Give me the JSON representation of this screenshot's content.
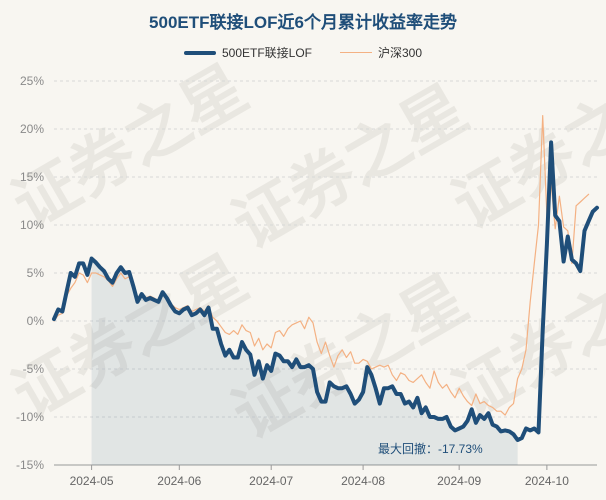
{
  "chart_data": {
    "type": "line",
    "title": "500ETF联接LOF近6个月累计收益率走势",
    "xlabel": "",
    "ylabel": "",
    "ylim": [
      -15,
      25
    ],
    "yticks": [
      "25%",
      "20%",
      "15%",
      "10%",
      "5%",
      "0%",
      "-5%",
      "-10%",
      "-15%"
    ],
    "ytick_values": [
      25,
      20,
      15,
      10,
      5,
      0,
      -5,
      -10,
      -15
    ],
    "xticks": [
      "2024-05",
      "2024-06",
      "2024-07",
      "2024-08",
      "2024-09",
      "2024-10"
    ],
    "grid": true,
    "legend": "top-center",
    "annotation": "最大回撤：-17.73%",
    "watermark": "证券之星",
    "series": [
      {
        "name": "500ETF联接LOF",
        "color": "#1f4e79",
        "values": [
          0.2,
          1.2,
          1.0,
          3.0,
          5.0,
          4.6,
          6.0,
          6.0,
          4.8,
          6.5,
          6.1,
          5.6,
          5.2,
          4.4,
          4.0,
          5.0,
          5.6,
          5.0,
          5.1,
          3.6,
          2.0,
          2.8,
          2.2,
          2.4,
          2.2,
          2.0,
          3.0,
          2.4,
          1.6,
          1.0,
          0.8,
          1.2,
          1.4,
          0.6,
          0.8,
          1.2,
          0.6,
          1.4,
          -0.8,
          -0.8,
          -2.4,
          -3.6,
          -3.0,
          -3.8,
          -3.8,
          -2.2,
          -3.0,
          -3.5,
          -5.6,
          -4.2,
          -6.0,
          -4.6,
          -5.2,
          -3.4,
          -3.6,
          -4.2,
          -4.2,
          -4.8,
          -4.0,
          -4.8,
          -4.8,
          -4.6,
          -5.0,
          -7.4,
          -8.4,
          -8.4,
          -6.4,
          -6.8,
          -7.0,
          -7.0,
          -6.8,
          -7.6,
          -8.6,
          -8.2,
          -7.4,
          -4.8,
          -5.6,
          -7.0,
          -8.6,
          -7.0,
          -7.0,
          -6.8,
          -7.6,
          -7.6,
          -8.6,
          -8.4,
          -9.0,
          -8.0,
          -9.6,
          -9.0,
          -10.0,
          -10.0,
          -10.2,
          -10.2,
          -10.0,
          -11.0,
          -11.4,
          -11.2,
          -11.0,
          -10.4,
          -9.2,
          -10.6,
          -9.8,
          -10.2,
          -9.6,
          -10.8,
          -11.0,
          -11.5,
          -11.4,
          -11.5,
          -11.8,
          -12.4,
          -12.2,
          -11.2,
          -11.4,
          -11.2,
          -11.6,
          -1.0,
          8.0,
          18.6,
          11.0,
          10.4,
          6.2,
          8.8,
          6.4,
          6.0,
          5.2,
          9.4,
          10.4,
          11.4,
          11.8
        ]
      },
      {
        "name": "沪深300",
        "color": "#f4b183",
        "values": [
          0.0,
          0.6,
          0.8,
          2.6,
          3.4,
          4.0,
          5.0,
          4.8,
          4.0,
          5.0,
          5.0,
          4.8,
          4.6,
          4.2,
          3.6,
          4.4,
          5.0,
          4.4,
          4.6,
          3.2,
          2.4,
          2.8,
          2.4,
          2.6,
          2.4,
          2.0,
          2.8,
          2.4,
          1.8,
          1.4,
          1.2,
          1.4,
          1.6,
          1.0,
          1.2,
          1.4,
          1.0,
          1.6,
          0.4,
          0.0,
          -0.6,
          -1.2,
          -1.4,
          -1.0,
          -1.4,
          -0.4,
          -1.0,
          -1.2,
          -2.6,
          -1.8,
          -3.0,
          -2.4,
          -2.8,
          -1.2,
          -1.0,
          -1.6,
          -0.8,
          -0.4,
          -0.2,
          0.0,
          -0.8,
          0.4,
          -0.2,
          -2.2,
          -3.4,
          -2.2,
          -3.6,
          -4.8,
          -3.6,
          -3.0,
          -3.8,
          -3.2,
          -4.4,
          -4.4,
          -4.0,
          -4.2,
          -5.0,
          -4.8,
          -4.6,
          -4.8,
          -4.6,
          -5.6,
          -6.2,
          -5.4,
          -5.6,
          -6.2,
          -6.4,
          -6.0,
          -5.6,
          -6.4,
          -7.0,
          -5.2,
          -6.4,
          -7.0,
          -6.6,
          -7.4,
          -8.0,
          -7.0,
          -7.8,
          -8.4,
          -8.8,
          -7.6,
          -8.6,
          -8.4,
          -8.8,
          -9.0,
          -9.4,
          -9.4,
          -9.8,
          -9.0,
          -8.6,
          -6.0,
          -5.0,
          -3.0,
          2.0,
          6.0,
          10.0,
          21.4,
          11.0,
          14.4,
          9.6,
          13.0,
          9.8,
          9.4,
          6.0,
          12.0,
          12.4,
          12.8,
          13.2
        ]
      }
    ]
  }
}
